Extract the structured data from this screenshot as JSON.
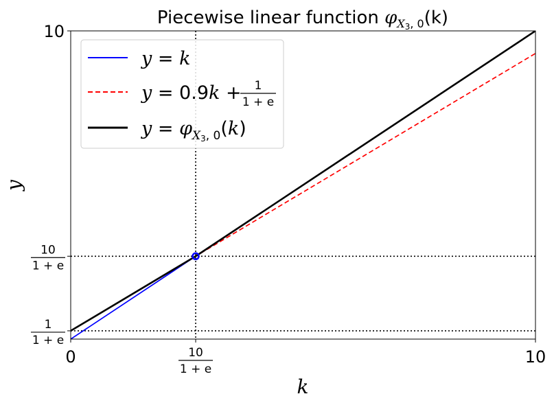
{
  "chart_data": {
    "type": "line",
    "title": {
      "prefix": "Piecewise linear function ",
      "symbol": "φ",
      "subscript": "X",
      "subsub": "3",
      "subrest": ", 0",
      "arg": "(k)"
    },
    "xlabel": "k",
    "ylabel": "y",
    "xlim": [
      0,
      10
    ],
    "ylim": [
      0,
      10
    ],
    "x_ticks": [
      {
        "value": 0,
        "label": "0"
      },
      {
        "value": 2.689,
        "num": "10",
        "den": "1 + e"
      },
      {
        "value": 10,
        "label": "10"
      }
    ],
    "y_ticks": [
      {
        "value": 0.269,
        "num": "1",
        "den": "1 + e"
      },
      {
        "value": 2.689,
        "num": "10",
        "den": "1 + e"
      },
      {
        "value": 10,
        "label": "10"
      }
    ],
    "reference_lines": {
      "vertical_x": [
        2.689
      ],
      "horizontal_y": [
        0.269,
        2.689
      ]
    },
    "marker": {
      "x": 2.689,
      "y": 2.689,
      "color": "#0000ff"
    },
    "series": [
      {
        "name": "y = k",
        "style": "solid",
        "color": "#0000ff",
        "x": [
          0,
          2.689
        ],
        "y": [
          0,
          2.689
        ]
      },
      {
        "name": "y = 0.9k + 1/(1+e)",
        "style": "dashed",
        "color": "#ff0000",
        "x": [
          0,
          10
        ],
        "y": [
          0.269,
          9.269
        ]
      },
      {
        "name": "y = φ_{X3,0}(k)",
        "style": "solid-thick",
        "color": "#000000",
        "x": [
          0,
          2.689,
          10
        ],
        "y": [
          0.269,
          2.689,
          10
        ]
      }
    ],
    "legend": {
      "placement": "upper-left",
      "entries": [
        {
          "lhs": "y",
          "eq": " = ",
          "rhs": "k"
        },
        {
          "lhs": "y",
          "eq": " = 0.9",
          "rhs": "k",
          "plus": " + ",
          "num": "1",
          "den": "1 + e"
        },
        {
          "lhs": "y",
          "eq": " = ",
          "phi": "φ",
          "sub": "X",
          "subsub": "3",
          "subrest": ", 0",
          "arg_open": "(",
          "arg": "k",
          "arg_close": ")"
        }
      ]
    },
    "grid": false
  }
}
